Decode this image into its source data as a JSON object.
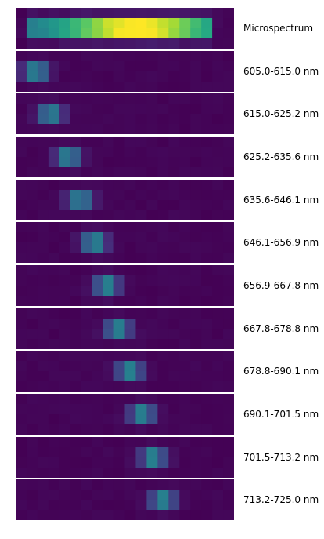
{
  "chart_data": {
    "type": "heatmap",
    "colormap": "viridis",
    "panels": [
      {
        "label": "Microspectrum",
        "kind": "full"
      },
      {
        "label": "605.0-615.0 nm",
        "center_col": 1.3
      },
      {
        "label": "615.0-625.2 nm",
        "center_col": 2.7
      },
      {
        "label": "625.2-635.6 nm",
        "center_col": 4.3
      },
      {
        "label": "635.6-646.1 nm",
        "center_col": 5.4
      },
      {
        "label": "646.1-656.9 nm",
        "center_col": 6.7
      },
      {
        "label": "656.9-667.8 nm",
        "center_col": 7.9
      },
      {
        "label": "667.8-678.8 nm",
        "center_col": 8.9
      },
      {
        "label": "678.8-690.1 nm",
        "center_col": 10.0
      },
      {
        "label": "690.1-701.5 nm",
        "center_col": 11.1
      },
      {
        "label": "701.5-713.2 nm",
        "center_col": 12.1
      },
      {
        "label": "713.2-725.0 nm",
        "center_col": 13.0
      }
    ]
  }
}
